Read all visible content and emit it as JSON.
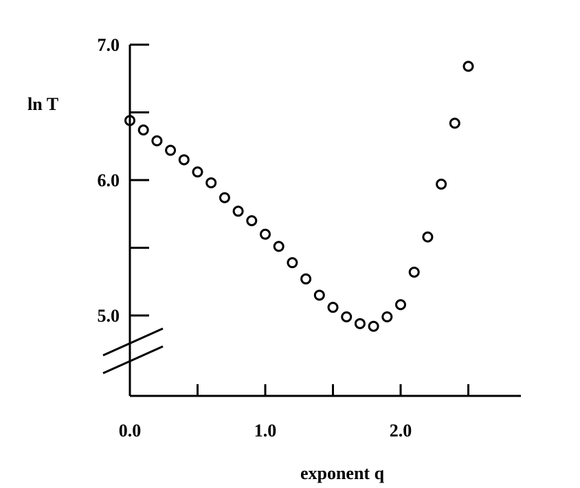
{
  "chart_data": {
    "type": "scatter",
    "title": "",
    "xlabel": "exponent q",
    "ylabel": "ln T",
    "x_ticks": [
      0.0,
      0.5,
      1.0,
      1.5,
      2.0,
      2.5
    ],
    "x_tick_labels": [
      "0.0",
      "1.0",
      "2.0"
    ],
    "x_tick_label_values": [
      0.0,
      1.0,
      2.0
    ],
    "y_ticks": [
      5.0,
      5.5,
      6.0,
      6.5,
      7.0
    ],
    "y_tick_labels": [
      "5.0",
      "6.0",
      "7.0"
    ],
    "y_tick_label_values": [
      5.0,
      6.0,
      7.0
    ],
    "xlim": [
      0.0,
      2.9
    ],
    "ylim": [
      4.4,
      7.0
    ],
    "y_axis_break": true,
    "grid": false,
    "marker": "open-circle",
    "color": "#000000",
    "series": [
      {
        "x": [
          0.0,
          0.1,
          0.2,
          0.3,
          0.4,
          0.5,
          0.6,
          0.7,
          0.8,
          0.9,
          1.0,
          1.1,
          1.2,
          1.3,
          1.4,
          1.5,
          1.6,
          1.7,
          1.8,
          1.9,
          2.0,
          2.1,
          2.2,
          2.3,
          2.4,
          2.5
        ],
        "y": [
          6.44,
          6.37,
          6.29,
          6.22,
          6.15,
          6.06,
          5.98,
          5.87,
          5.77,
          5.7,
          5.6,
          5.51,
          5.39,
          5.27,
          5.15,
          5.06,
          4.99,
          4.94,
          4.92,
          4.99,
          5.08,
          5.32,
          5.58,
          5.97,
          6.42,
          6.84
        ]
      }
    ]
  }
}
